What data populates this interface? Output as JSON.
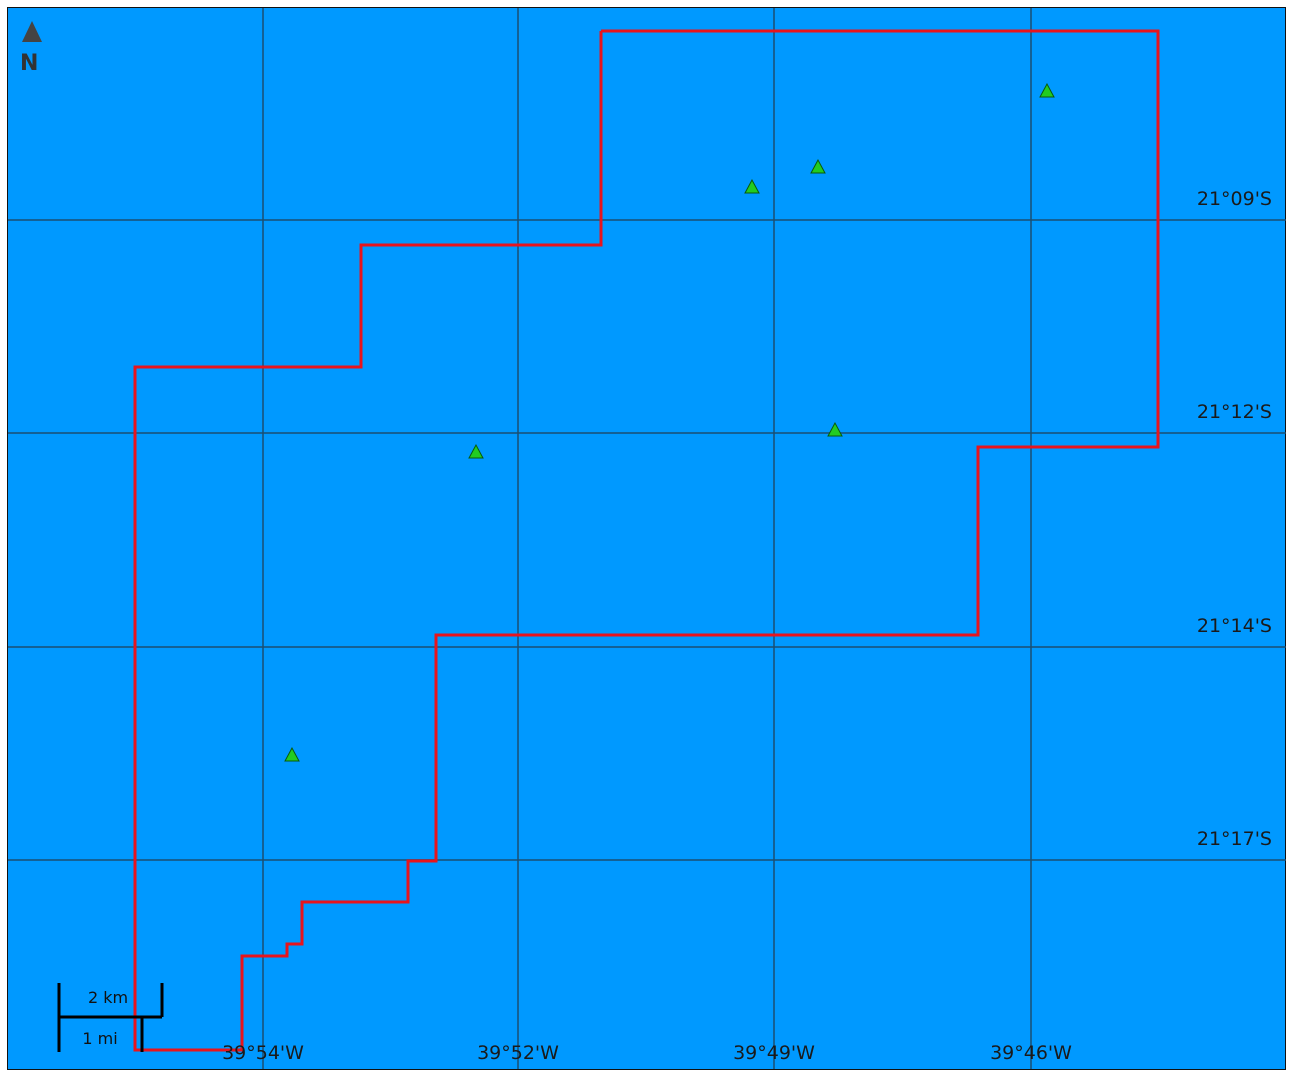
{
  "map": {
    "background_color": "#0099ff",
    "grid_color": "#1b4f72",
    "boundary_color": "#e8141c",
    "marker_color": "#22cc22",
    "marker_icon": "green-triangle-icon",
    "north_arrow": {
      "icon": "north-arrow-icon",
      "label": "N"
    },
    "latitude_labels": [
      "21°09'S",
      "21°12'S",
      "21°14'S",
      "21°17'S"
    ],
    "longitude_labels": [
      "39°54'W",
      "39°52'W",
      "39°49'W",
      "39°46'W"
    ],
    "scale_bar": {
      "km_label": "2 km",
      "mi_label": "1 mi"
    },
    "marker_count": 6
  }
}
